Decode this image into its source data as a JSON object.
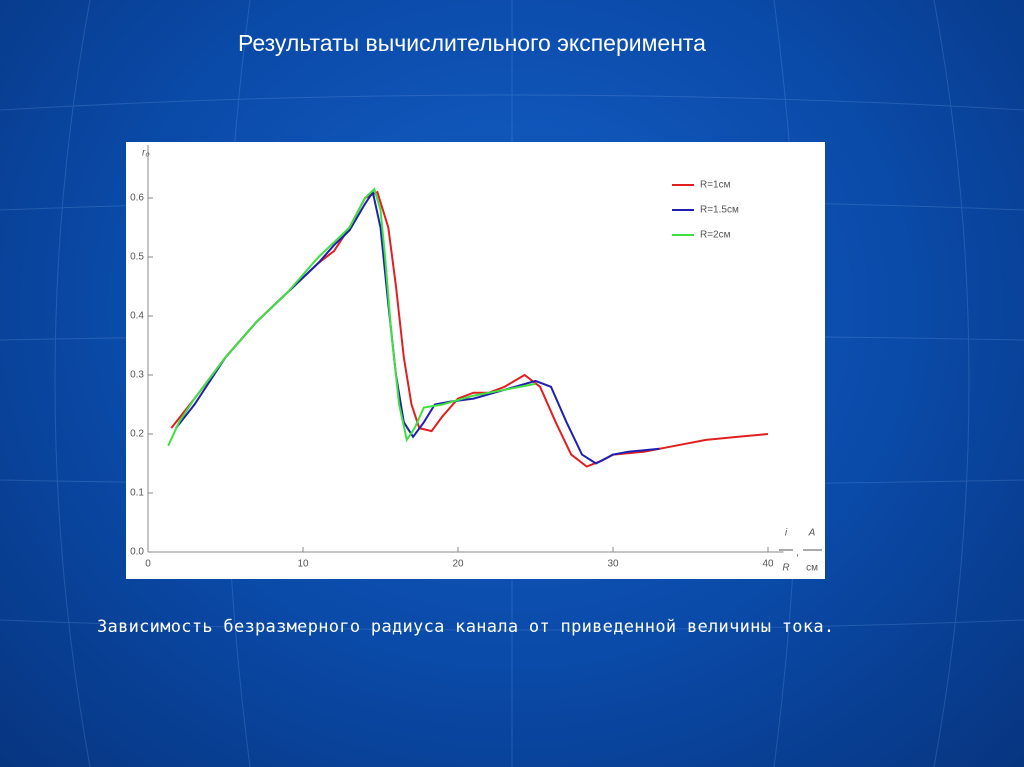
{
  "slide": {
    "title": "Результаты вычислительного эксперимента",
    "caption": "Зависимость безразмерного радиуса канала от приведенной величины тока."
  },
  "chart_data": {
    "type": "line",
    "y_label": "r₀",
    "x_label_parts": [
      "i",
      "R",
      "A",
      "см"
    ],
    "xlim": [
      0,
      41
    ],
    "xticks": [
      0,
      10,
      20,
      30,
      40
    ],
    "ylim": [
      0,
      0.69
    ],
    "yticks": [
      {
        "value": 0,
        "label": "0.0"
      },
      0.1,
      0.2,
      0.3,
      0.4,
      0.5,
      0.6
    ],
    "legend": "top-right",
    "series": [
      {
        "name": "R=1см",
        "color": "#e02020",
        "x": [
          1.5,
          3,
          5,
          7,
          9,
          11,
          12,
          13,
          14,
          14.8,
          15.5,
          16,
          16.5,
          17,
          17.5,
          18.3,
          19,
          20,
          21,
          22,
          23,
          24.3,
          25.3,
          26.3,
          27.3,
          28.3,
          29.3,
          30,
          32,
          34,
          36,
          38,
          40
        ],
        "values": [
          0.21,
          0.26,
          0.33,
          0.39,
          0.44,
          0.49,
          0.51,
          0.55,
          0.6,
          0.61,
          0.55,
          0.45,
          0.33,
          0.25,
          0.21,
          0.205,
          0.23,
          0.26,
          0.27,
          0.27,
          0.28,
          0.3,
          0.28,
          0.22,
          0.165,
          0.145,
          0.155,
          0.165,
          0.17,
          0.18,
          0.19,
          0.195,
          0.2
        ]
      },
      {
        "name": "R=1.5см",
        "color": "#2020b0",
        "x": [
          1.8,
          3,
          5,
          7,
          9,
          11,
          12,
          13,
          14,
          14.5,
          15,
          15.5,
          16,
          16.5,
          17.1,
          17.8,
          18.5,
          19.5,
          21,
          23,
          25,
          26,
          27,
          28,
          28.9,
          30,
          31,
          33
        ],
        "values": [
          0.21,
          0.25,
          0.33,
          0.39,
          0.44,
          0.49,
          0.52,
          0.545,
          0.59,
          0.61,
          0.55,
          0.42,
          0.3,
          0.22,
          0.195,
          0.22,
          0.25,
          0.255,
          0.26,
          0.275,
          0.29,
          0.28,
          0.22,
          0.165,
          0.15,
          0.165,
          0.17,
          0.175
        ]
      },
      {
        "name": "R=2см",
        "color": "#40e040",
        "x": [
          1.3,
          2,
          3,
          5,
          7,
          9,
          11,
          12,
          13,
          14,
          14.6,
          15,
          15.3,
          15.7,
          16.2,
          16.7,
          17.2,
          17.8,
          19,
          21,
          23,
          25
        ],
        "values": [
          0.18,
          0.22,
          0.26,
          0.33,
          0.39,
          0.44,
          0.5,
          0.525,
          0.55,
          0.6,
          0.615,
          0.58,
          0.5,
          0.37,
          0.25,
          0.19,
          0.21,
          0.245,
          0.25,
          0.265,
          0.275,
          0.285
        ]
      }
    ]
  }
}
